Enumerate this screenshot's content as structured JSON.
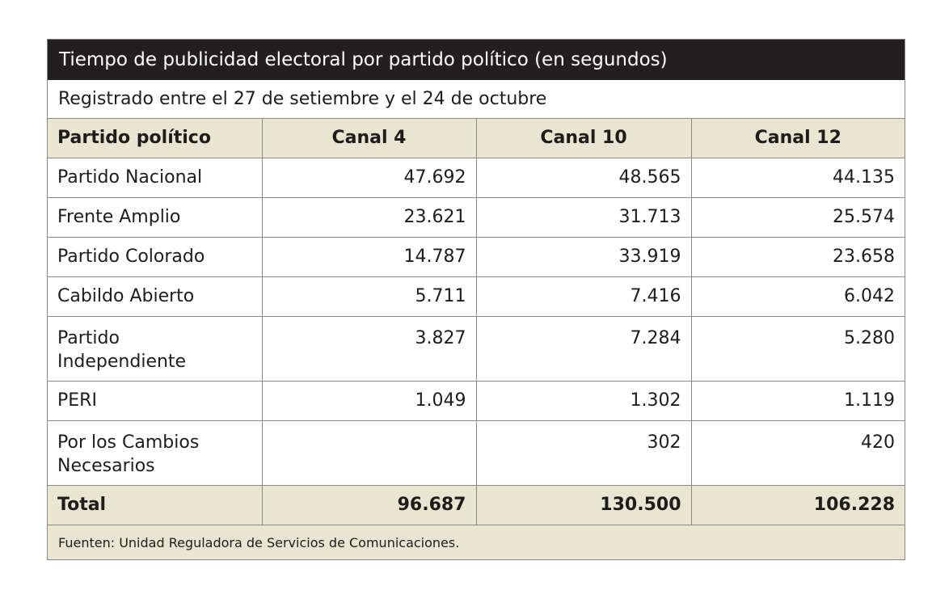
{
  "table": {
    "title": "Tiempo de publicidad electoral por partido político (en segundos)",
    "subtitle": "Registrado entre el 27 de setiembre y el 24 de octubre",
    "columns": [
      "Partido político",
      "Canal 4",
      "Canal 10",
      "Canal 12"
    ],
    "rows": [
      {
        "party": "Partido Nacional",
        "canal4": "47.692",
        "canal10": "48.565",
        "canal12": "44.135"
      },
      {
        "party": "Frente Amplio",
        "canal4": "23.621",
        "canal10": "31.713",
        "canal12": "25.574"
      },
      {
        "party": "Partido Colorado",
        "canal4": "14.787",
        "canal10": "33.919",
        "canal12": "23.658"
      },
      {
        "party": "Cabildo Abierto",
        "canal4": "5.711",
        "canal10": "7.416",
        "canal12": "6.042"
      },
      {
        "party": "Partido Independiente",
        "canal4": "3.827",
        "canal10": "7.284",
        "canal12": "5.280"
      },
      {
        "party": "PERI",
        "canal4": "1.049",
        "canal10": "1.302",
        "canal12": "1.119"
      },
      {
        "party": "Por los Cambios Necesarios",
        "canal4": "",
        "canal10": "302",
        "canal12": "420"
      }
    ],
    "total": {
      "label": "Total",
      "canal4": "96.687",
      "canal10": "130.500",
      "canal12": "106.228"
    },
    "source": "Fuenten: Unidad Reguladora de Servicios de Comunicaciones.",
    "colors": {
      "title_background": "#231f20",
      "header_background": "#e8e5d0",
      "border": "#8a8a84"
    }
  }
}
